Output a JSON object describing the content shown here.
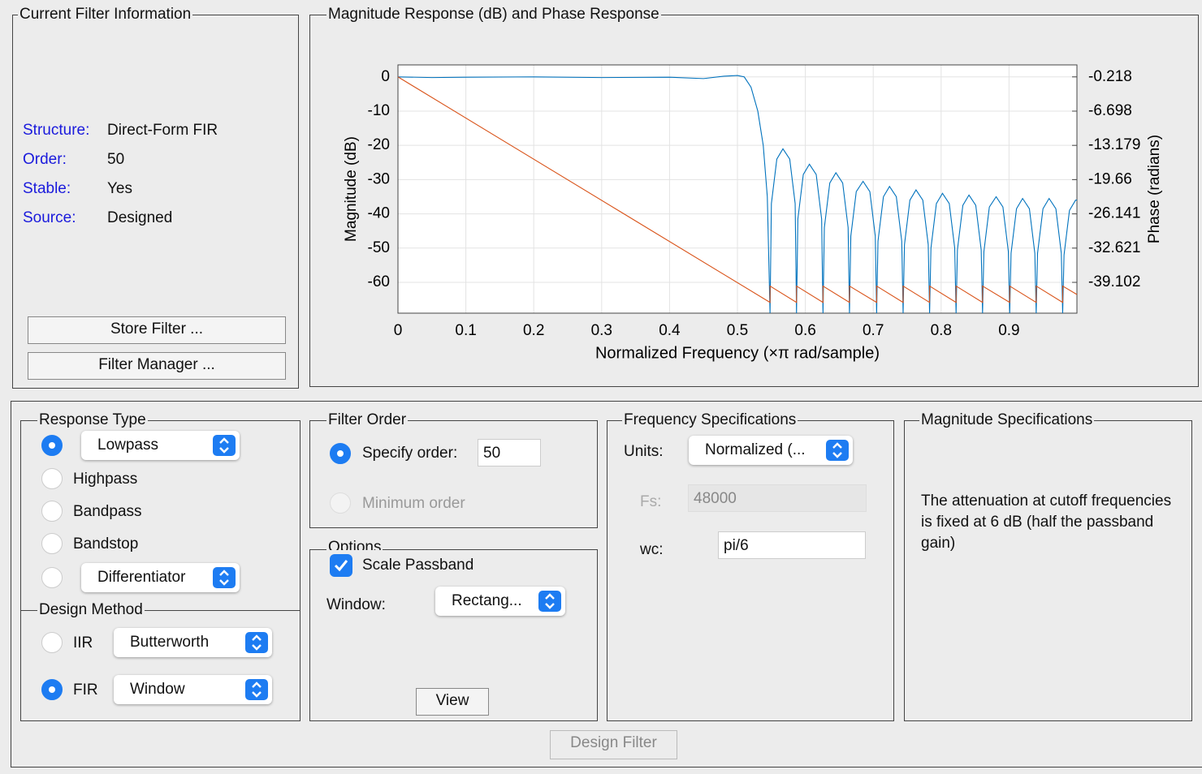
{
  "filter_info": {
    "title": "Current Filter Information",
    "rows": [
      {
        "label": "Structure:",
        "value": "Direct-Form FIR"
      },
      {
        "label": "Order:",
        "value": "50"
      },
      {
        "label": "Stable:",
        "value": "Yes"
      },
      {
        "label": "Source:",
        "value": "Designed"
      }
    ],
    "buttons": [
      "Store Filter ...",
      "Filter Manager ..."
    ]
  },
  "chart_data": {
    "type": "line",
    "title": "Magnitude Response (dB) and Phase Response",
    "x_label": "Normalized Frequency (×π rad/sample)",
    "y_label": "Magnitude (dB)",
    "y2_label": "Phase (radians)",
    "xlim": [
      0,
      1
    ],
    "xticks": [
      0,
      0.1,
      0.2,
      0.3,
      0.4,
      0.5,
      0.6,
      0.7,
      0.8,
      0.9
    ],
    "ylim": [
      -69,
      3.5
    ],
    "yticks": [
      0,
      -10,
      -20,
      -30,
      -40,
      -50,
      -60
    ],
    "y2lim": [
      -44.933,
      2.05
    ],
    "y2ticks": [
      -0.218,
      -6.698,
      -13.179,
      -19.66,
      -26.141,
      -32.621,
      -39.102
    ],
    "grid": true,
    "series": [
      {
        "color": "#0072bd",
        "x": [
          0,
          0.05,
          0.1,
          0.2,
          0.3,
          0.4,
          0.45,
          0.48,
          0.5,
          0.51,
          0.52,
          0.53,
          0.538,
          0.544,
          0.548,
          0.55,
          0.558,
          0.567,
          0.577,
          0.585,
          0.587,
          0.589,
          0.597,
          0.606,
          0.616,
          0.624,
          0.626,
          0.628,
          0.636,
          0.645,
          0.655,
          0.663,
          0.665,
          0.667,
          0.675,
          0.685,
          0.695,
          0.703,
          0.705,
          0.707,
          0.715,
          0.724,
          0.734,
          0.742,
          0.744,
          0.746,
          0.754,
          0.763,
          0.773,
          0.781,
          0.783,
          0.785,
          0.793,
          0.802,
          0.812,
          0.82,
          0.822,
          0.824,
          0.832,
          0.841,
          0.851,
          0.859,
          0.861,
          0.863,
          0.871,
          0.881,
          0.891,
          0.899,
          0.901,
          0.903,
          0.911,
          0.92,
          0.93,
          0.938,
          0.94,
          0.942,
          0.95,
          0.959,
          0.969,
          0.977,
          0.979,
          0.981,
          0.989,
          0.998,
          1
        ],
        "values": [
          0,
          -0.2,
          -0.1,
          0,
          -0.2,
          -0.1,
          -0.5,
          0.2,
          0.4,
          0,
          -3,
          -10,
          -20,
          -35,
          -69,
          -37,
          -24,
          -21,
          -24,
          -37,
          -69,
          -41.5,
          -28.5,
          -25.5,
          -28.5,
          -41.5,
          -69,
          -44,
          -31,
          -28,
          -31,
          -44,
          -69,
          -46.5,
          -33.5,
          -30.5,
          -33.5,
          -46.5,
          -69,
          -48,
          -35,
          -32,
          -35,
          -48,
          -69,
          -49,
          -36,
          -33,
          -36,
          -49,
          -69,
          -50,
          -37,
          -34,
          -37,
          -50,
          -69,
          -50.5,
          -37.5,
          -34.5,
          -37.5,
          -50.5,
          -69,
          -51,
          -38,
          -35,
          -38,
          -51,
          -69,
          -51.5,
          -38.5,
          -35.5,
          -38.5,
          -51.5,
          -69,
          -51.5,
          -38.5,
          -35.5,
          -38.5,
          -51.5,
          -69,
          -52,
          -39,
          -36,
          -36
        ]
      },
      {
        "color": "#d95319",
        "axis": "y2",
        "x": [
          0,
          0.548,
          0.548,
          0.587,
          0.587,
          0.626,
          0.626,
          0.665,
          0.665,
          0.705,
          0.705,
          0.744,
          0.744,
          0.783,
          0.783,
          0.822,
          0.822,
          0.861,
          0.861,
          0.901,
          0.901,
          0.94,
          0.94,
          0.979,
          0.979,
          1
        ],
        "values": [
          -0.218,
          -42.9,
          -39.8,
          -42.9,
          -39.8,
          -42.9,
          -39.8,
          -42.9,
          -39.8,
          -42.9,
          -39.8,
          -42.9,
          -39.8,
          -42.9,
          -39.8,
          -42.9,
          -39.8,
          -42.9,
          -39.8,
          -42.9,
          -39.8,
          -42.9,
          -39.8,
          -42.9,
          -39.8,
          -41.4
        ]
      }
    ]
  },
  "response_type": {
    "title": "Response Type",
    "options": [
      "Lowpass",
      "Highpass",
      "Bandpass",
      "Bandstop",
      "Differentiator"
    ]
  },
  "design_method": {
    "title": "Design Method",
    "options": [
      {
        "label": "IIR",
        "select": "Butterworth"
      },
      {
        "label": "FIR",
        "select": "Window"
      }
    ]
  },
  "filter_order": {
    "title": "Filter Order",
    "specify": "Specify order:",
    "order": "50",
    "minimum": "Minimum order"
  },
  "options": {
    "title": "Options",
    "scale": "Scale Passband",
    "window_label": "Window:",
    "window": "Rectang...",
    "view": "View"
  },
  "frequency_specs": {
    "title": "Frequency Specifications",
    "units_label": "Units:",
    "units": "Normalized (...",
    "fs_label": "Fs:",
    "fs": "48000",
    "wc_label": "wc:",
    "wc": "pi/6"
  },
  "magnitude_specs": {
    "title": "Magnitude Specifications",
    "text": "The attenuation at cutoff frequencies is fixed at 6 dB (half the passband gain)"
  },
  "design_button": "Design Filter"
}
